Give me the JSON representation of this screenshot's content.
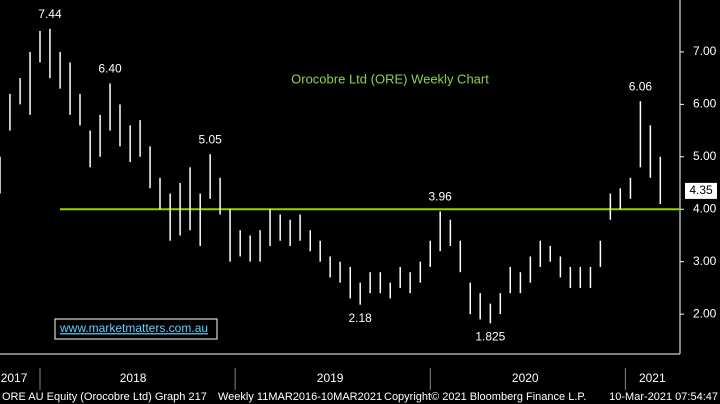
{
  "chart_data": {
    "type": "range",
    "title": "Orocobre Ltd (ORE) Weekly Chart",
    "color": "#ffffff",
    "x": [
      2017.795,
      2017.846,
      2017.898,
      2017.949,
      2018.0,
      2018.051,
      2018.103,
      2018.154,
      2018.205,
      2018.257,
      2018.308,
      2018.359,
      2018.41,
      2018.462,
      2018.513,
      2018.564,
      2018.615,
      2018.667,
      2018.718,
      2018.769,
      2018.821,
      2018.872,
      2018.923,
      2018.974,
      2019.026,
      2019.077,
      2019.128,
      2019.179,
      2019.231,
      2019.282,
      2019.333,
      2019.385,
      2019.436,
      2019.487,
      2019.538,
      2019.59,
      2019.641,
      2019.692,
      2019.744,
      2019.795,
      2019.846,
      2019.897,
      2019.949,
      2020.0,
      2020.051,
      2020.103,
      2020.154,
      2020.205,
      2020.256,
      2020.308,
      2020.359,
      2020.41,
      2020.462,
      2020.513,
      2020.564,
      2020.615,
      2020.667,
      2020.718,
      2020.769,
      2020.821,
      2020.872,
      2020.923,
      2020.974,
      2021.026,
      2021.077,
      2021.128,
      2021.179
    ],
    "high": [
      5.0,
      6.2,
      6.5,
      7.0,
      7.4,
      7.44,
      7.0,
      6.8,
      6.2,
      5.5,
      5.8,
      6.4,
      6.0,
      5.6,
      5.7,
      5.2,
      4.6,
      4.3,
      4.5,
      4.8,
      4.3,
      5.05,
      4.6,
      4.0,
      3.6,
      3.5,
      3.6,
      4.0,
      3.9,
      3.8,
      3.9,
      3.6,
      3.4,
      3.1,
      3.0,
      2.9,
      2.6,
      2.8,
      2.8,
      2.6,
      2.9,
      2.8,
      3.0,
      3.4,
      3.96,
      3.8,
      3.4,
      2.6,
      2.4,
      2.2,
      2.4,
      2.9,
      2.8,
      3.1,
      3.4,
      3.3,
      3.1,
      2.9,
      2.9,
      2.9,
      3.4,
      4.3,
      4.4,
      4.6,
      6.06,
      5.6,
      5.0
    ],
    "low": [
      4.3,
      5.5,
      6.0,
      5.8,
      6.8,
      6.5,
      6.3,
      5.8,
      5.6,
      4.8,
      5.0,
      5.5,
      5.2,
      4.9,
      5.0,
      4.4,
      4.0,
      3.4,
      3.5,
      3.6,
      3.3,
      4.2,
      3.9,
      3.0,
      3.1,
      3.0,
      3.0,
      3.3,
      3.4,
      3.3,
      3.4,
      3.2,
      3.0,
      2.7,
      2.6,
      2.3,
      2.18,
      2.4,
      2.4,
      2.3,
      2.5,
      2.4,
      2.6,
      2.9,
      3.2,
      3.3,
      2.8,
      2.0,
      1.9,
      1.825,
      2.0,
      2.4,
      2.4,
      2.6,
      2.9,
      3.0,
      2.7,
      2.5,
      2.5,
      2.5,
      2.9,
      3.8,
      4.0,
      4.2,
      4.8,
      4.6,
      4.1
    ],
    "annotations": [
      {
        "label": "7.44",
        "x": 2018.051,
        "y": 7.44
      },
      {
        "label": "6.40",
        "x": 2018.359,
        "y": 6.4
      },
      {
        "label": "5.05",
        "x": 2018.872,
        "y": 5.05
      },
      {
        "label": "2.18",
        "x": 2019.641,
        "y": 2.18
      },
      {
        "label": "3.96",
        "x": 2020.051,
        "y": 3.96
      },
      {
        "label": "1.825",
        "x": 2020.308,
        "y": 1.825
      },
      {
        "label": "6.06",
        "x": 2021.077,
        "y": 6.06
      }
    ],
    "hline": 4.0,
    "hline_color": "#8fd400",
    "last_price": {
      "value": 4.35,
      "label": "4.35"
    },
    "xlim": [
      2017.795,
      2021.28
    ],
    "xticks": [
      {
        "value": 2017.867,
        "label": "2017"
      },
      {
        "value": 2018.477,
        "label": "2018"
      },
      {
        "value": 2019.487,
        "label": "2019"
      },
      {
        "value": 2020.487,
        "label": "2020"
      },
      {
        "value": 2021.138,
        "label": "2021"
      }
    ],
    "year_dividers": [
      2018,
      2019,
      2020,
      2021
    ],
    "ylim": [
      1.24,
      7.99
    ],
    "yticks": [
      {
        "value": 2,
        "label": "2.00"
      },
      {
        "value": 3,
        "label": "3.00"
      },
      {
        "value": 4,
        "label": "4.00"
      },
      {
        "value": 5,
        "label": "5.00"
      },
      {
        "value": 6,
        "label": "6.00"
      },
      {
        "value": 7,
        "label": "7.00"
      }
    ],
    "watermark": "www.marketmatters.com.au"
  },
  "footer": {
    "left": "ORE AU Equity (Orocobre Ltd) Graph 217",
    "middle": "Weekly 11MAR2016-10MAR2021",
    "copyright": "Copyright© 2021 Bloomberg Finance L.P.",
    "right": "10-Mar-2021 07:54:47"
  }
}
